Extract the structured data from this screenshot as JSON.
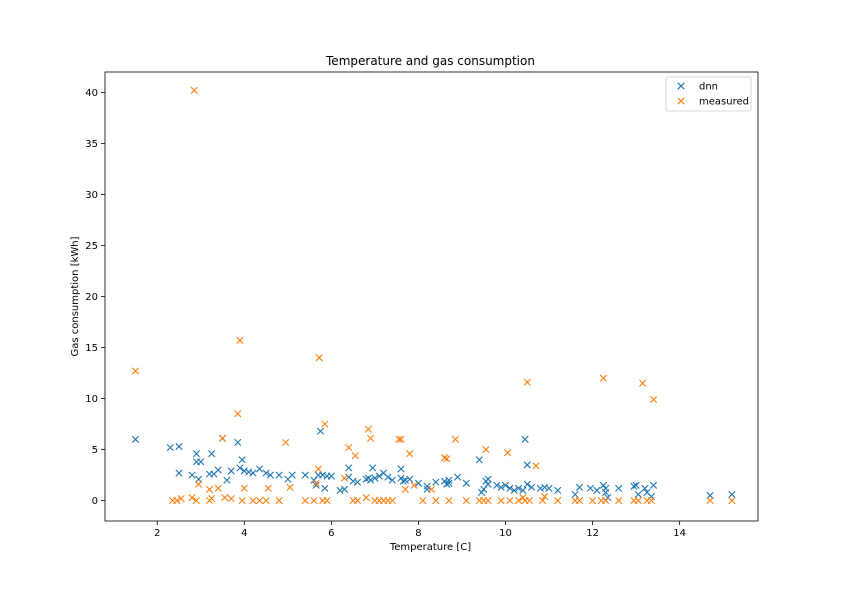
{
  "chart_data": {
    "type": "scatter",
    "title": "Temperature and gas consumption",
    "xlabel": "Temperature [C]",
    "ylabel": "Gas consumption [kWh]",
    "xlim": [
      0.8,
      15.8
    ],
    "ylim": [
      -2.0,
      42.0
    ],
    "xticks": [
      2,
      4,
      6,
      8,
      10,
      12,
      14
    ],
    "yticks": [
      0,
      5,
      10,
      15,
      20,
      25,
      30,
      35,
      40
    ],
    "grid": false,
    "legend_position": "top-right",
    "marker": "x",
    "series": [
      {
        "name": "dnn",
        "color": "#1f77b4",
        "points": [
          [
            1.5,
            6.0
          ],
          [
            2.3,
            5.2
          ],
          [
            2.5,
            5.3
          ],
          [
            2.5,
            2.7
          ],
          [
            2.8,
            2.5
          ],
          [
            2.9,
            4.6
          ],
          [
            2.9,
            3.8
          ],
          [
            2.95,
            2.1
          ],
          [
            3.0,
            3.8
          ],
          [
            3.2,
            2.6
          ],
          [
            3.25,
            4.6
          ],
          [
            3.3,
            2.6
          ],
          [
            3.4,
            3.0
          ],
          [
            3.5,
            6.1
          ],
          [
            3.6,
            2.0
          ],
          [
            3.7,
            2.9
          ],
          [
            3.85,
            5.7
          ],
          [
            3.9,
            3.2
          ],
          [
            3.95,
            4.0
          ],
          [
            4.0,
            2.9
          ],
          [
            4.1,
            2.8
          ],
          [
            4.2,
            2.7
          ],
          [
            4.35,
            3.1
          ],
          [
            4.5,
            2.7
          ],
          [
            4.6,
            2.5
          ],
          [
            4.8,
            2.5
          ],
          [
            5.0,
            2.1
          ],
          [
            5.1,
            2.5
          ],
          [
            5.4,
            2.5
          ],
          [
            5.6,
            2.0
          ],
          [
            5.65,
            1.5
          ],
          [
            5.7,
            2.5
          ],
          [
            5.75,
            6.8
          ],
          [
            5.8,
            2.5
          ],
          [
            5.85,
            1.2
          ],
          [
            5.9,
            2.4
          ],
          [
            6.0,
            2.4
          ],
          [
            6.2,
            1.0
          ],
          [
            6.3,
            1.1
          ],
          [
            6.4,
            2.3
          ],
          [
            6.4,
            3.2
          ],
          [
            6.5,
            1.9
          ],
          [
            6.6,
            1.8
          ],
          [
            6.8,
            2.1
          ],
          [
            6.85,
            2.2
          ],
          [
            6.9,
            2.0
          ],
          [
            6.95,
            3.2
          ],
          [
            7.0,
            2.2
          ],
          [
            7.1,
            2.4
          ],
          [
            7.2,
            2.7
          ],
          [
            7.3,
            2.3
          ],
          [
            7.4,
            2.0
          ],
          [
            7.6,
            2.2
          ],
          [
            7.6,
            3.1
          ],
          [
            7.65,
            1.9
          ],
          [
            7.7,
            2.0
          ],
          [
            7.8,
            2.1
          ],
          [
            8.0,
            1.7
          ],
          [
            8.2,
            1.4
          ],
          [
            8.2,
            1.1
          ],
          [
            8.4,
            1.8
          ],
          [
            8.6,
            1.9
          ],
          [
            8.65,
            1.6
          ],
          [
            8.7,
            1.7
          ],
          [
            8.7,
            2.0
          ],
          [
            8.9,
            2.3
          ],
          [
            9.1,
            1.7
          ],
          [
            9.4,
            4.0
          ],
          [
            9.45,
            0.8
          ],
          [
            9.5,
            1.1
          ],
          [
            9.55,
            1.9
          ],
          [
            9.6,
            2.1
          ],
          [
            9.6,
            1.6
          ],
          [
            9.8,
            1.5
          ],
          [
            9.9,
            1.3
          ],
          [
            10.0,
            1.5
          ],
          [
            10.1,
            1.2
          ],
          [
            10.2,
            1.0
          ],
          [
            10.3,
            1.2
          ],
          [
            10.4,
            1.0
          ],
          [
            10.45,
            6.0
          ],
          [
            10.5,
            3.5
          ],
          [
            10.5,
            1.6
          ],
          [
            10.6,
            1.3
          ],
          [
            10.8,
            1.2
          ],
          [
            10.9,
            1.3
          ],
          [
            11.0,
            1.2
          ],
          [
            11.2,
            1.0
          ],
          [
            11.6,
            0.6
          ],
          [
            11.7,
            1.3
          ],
          [
            11.95,
            1.2
          ],
          [
            12.1,
            1.0
          ],
          [
            12.25,
            1.5
          ],
          [
            12.3,
            1.2
          ],
          [
            12.3,
            0.8
          ],
          [
            12.35,
            0.3
          ],
          [
            12.6,
            1.2
          ],
          [
            12.95,
            1.4
          ],
          [
            13.0,
            1.5
          ],
          [
            13.05,
            0.6
          ],
          [
            13.2,
            1.2
          ],
          [
            13.25,
            0.8
          ],
          [
            13.35,
            0.4
          ],
          [
            13.4,
            1.5
          ],
          [
            14.7,
            0.5
          ],
          [
            15.2,
            0.6
          ]
        ]
      },
      {
        "name": "measured",
        "color": "#ff7f0e",
        "points": [
          [
            1.5,
            12.7
          ],
          [
            2.35,
            0.0
          ],
          [
            2.45,
            0.0
          ],
          [
            2.55,
            0.2
          ],
          [
            2.8,
            0.3
          ],
          [
            2.85,
            40.2
          ],
          [
            2.9,
            0.0
          ],
          [
            2.95,
            1.6
          ],
          [
            3.2,
            1.1
          ],
          [
            3.2,
            0.0
          ],
          [
            3.25,
            0.2
          ],
          [
            3.4,
            1.2
          ],
          [
            3.5,
            6.1
          ],
          [
            3.55,
            0.3
          ],
          [
            3.7,
            0.2
          ],
          [
            3.85,
            8.5
          ],
          [
            3.9,
            15.7
          ],
          [
            3.95,
            0.0
          ],
          [
            4.0,
            1.2
          ],
          [
            4.2,
            0.0
          ],
          [
            4.35,
            0.0
          ],
          [
            4.5,
            0.0
          ],
          [
            4.55,
            1.2
          ],
          [
            4.8,
            0.0
          ],
          [
            4.95,
            5.7
          ],
          [
            5.05,
            1.3
          ],
          [
            5.4,
            0.0
          ],
          [
            5.6,
            0.0
          ],
          [
            5.65,
            1.7
          ],
          [
            5.7,
            3.1
          ],
          [
            5.72,
            14.0
          ],
          [
            5.8,
            0.0
          ],
          [
            5.85,
            7.5
          ],
          [
            5.9,
            0.0
          ],
          [
            6.3,
            2.2
          ],
          [
            6.4,
            5.2
          ],
          [
            6.5,
            0.0
          ],
          [
            6.55,
            4.4
          ],
          [
            6.6,
            0.0
          ],
          [
            6.8,
            0.3
          ],
          [
            6.85,
            7.0
          ],
          [
            6.9,
            6.1
          ],
          [
            7.0,
            0.0
          ],
          [
            7.1,
            0.0
          ],
          [
            7.2,
            0.0
          ],
          [
            7.3,
            0.0
          ],
          [
            7.4,
            0.0
          ],
          [
            7.55,
            6.0
          ],
          [
            7.6,
            6.0
          ],
          [
            7.7,
            1.1
          ],
          [
            7.8,
            4.6
          ],
          [
            7.9,
            1.5
          ],
          [
            8.1,
            0.0
          ],
          [
            8.3,
            1.1
          ],
          [
            8.4,
            0.0
          ],
          [
            8.6,
            4.2
          ],
          [
            8.65,
            4.1
          ],
          [
            8.7,
            0.0
          ],
          [
            8.85,
            6.0
          ],
          [
            9.1,
            0.0
          ],
          [
            9.4,
            0.0
          ],
          [
            9.5,
            0.0
          ],
          [
            9.55,
            5.0
          ],
          [
            9.6,
            0.0
          ],
          [
            9.9,
            0.0
          ],
          [
            10.05,
            4.7
          ],
          [
            10.1,
            0.0
          ],
          [
            10.3,
            0.0
          ],
          [
            10.4,
            0.3
          ],
          [
            10.45,
            0.0
          ],
          [
            10.5,
            11.6
          ],
          [
            10.55,
            0.0
          ],
          [
            10.7,
            3.4
          ],
          [
            10.85,
            0.0
          ],
          [
            10.9,
            0.4
          ],
          [
            11.2,
            0.0
          ],
          [
            11.6,
            0.0
          ],
          [
            11.7,
            0.0
          ],
          [
            12.0,
            0.0
          ],
          [
            12.2,
            0.0
          ],
          [
            12.25,
            12.0
          ],
          [
            12.3,
            0.0
          ],
          [
            12.6,
            0.0
          ],
          [
            12.95,
            0.0
          ],
          [
            13.05,
            0.0
          ],
          [
            13.15,
            11.5
          ],
          [
            13.25,
            0.0
          ],
          [
            13.35,
            0.0
          ],
          [
            13.4,
            9.9
          ],
          [
            14.7,
            0.0
          ],
          [
            15.2,
            0.0
          ]
        ]
      }
    ]
  }
}
